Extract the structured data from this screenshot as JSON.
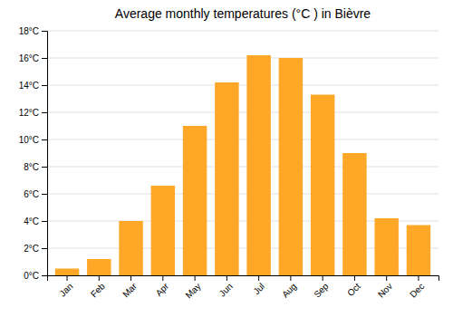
{
  "chart_data": {
    "type": "bar",
    "title": "Average monthly temperatures (°C ) in Bièvre",
    "categories": [
      "Jan",
      "Feb",
      "Mar",
      "Apr",
      "May",
      "Jun",
      "Jul",
      "Aug",
      "Sep",
      "Oct",
      "Nov",
      "Dec"
    ],
    "values": [
      0.5,
      1.2,
      4.0,
      6.6,
      11.0,
      14.2,
      16.2,
      16.0,
      13.3,
      9.0,
      4.2,
      3.7
    ],
    "color": "#FFA726",
    "ylim": [
      0,
      18
    ],
    "yticks": [
      {
        "value": 0,
        "label": "0°C"
      },
      {
        "value": 2,
        "label": "2°C"
      },
      {
        "value": 4,
        "label": "4°C"
      },
      {
        "value": 6,
        "label": "6°C"
      },
      {
        "value": 8,
        "label": "8°C"
      },
      {
        "value": 10,
        "label": "10°C"
      },
      {
        "value": 12,
        "label": "12°C"
      },
      {
        "value": 14,
        "label": "14°C"
      },
      {
        "value": 16,
        "label": "16°C"
      },
      {
        "value": 18,
        "label": "18°C"
      }
    ],
    "grid": true
  }
}
